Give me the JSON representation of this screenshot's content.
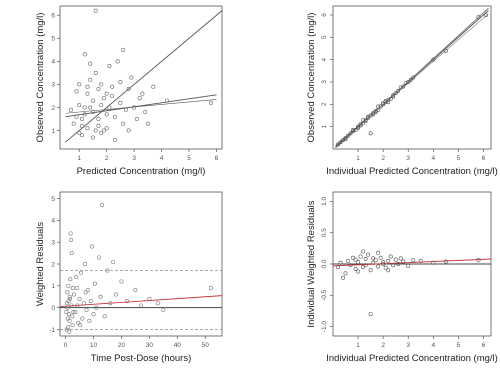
{
  "chart_data": [
    {
      "type": "scatter",
      "xlabel": "Predicted Concentration (mg/l)",
      "ylabel": "Observed Concentration (mg/l)",
      "xlim": [
        0.3,
        6.2
      ],
      "ylim": [
        0.2,
        6.4
      ],
      "xticks": [
        "1",
        "2",
        "3",
        "4",
        "5",
        "6"
      ],
      "yticks": [
        "1",
        "2",
        "3",
        "4",
        "5",
        "6"
      ],
      "colors": {
        "points": "#666666",
        "identity": "#555555",
        "fit": "#555555"
      },
      "lines": [
        {
          "kind": "identity",
          "x": [
            0.5,
            6.2
          ],
          "y": [
            0.5,
            6.2
          ]
        },
        {
          "kind": "fit",
          "x": [
            0.5,
            6.0
          ],
          "y": [
            1.6,
            2.55
          ]
        },
        {
          "kind": "fit-band",
          "x": [
            0.5,
            6.0
          ],
          "y": [
            1.75,
            2.35
          ]
        }
      ],
      "points": [
        [
          1.0,
          2.1
        ],
        [
          1.1,
          1.5
        ],
        [
          1.2,
          2.0
        ],
        [
          0.8,
          1.3
        ],
        [
          1.3,
          2.6
        ],
        [
          1.5,
          1.8
        ],
        [
          1.7,
          1.2
        ],
        [
          1.9,
          2.4
        ],
        [
          2.0,
          1.7
        ],
        [
          2.2,
          2.9
        ],
        [
          1.4,
          3.2
        ],
        [
          1.6,
          3.5
        ],
        [
          1.8,
          0.9
        ],
        [
          2.3,
          1.6
        ],
        [
          2.5,
          2.2
        ],
        [
          2.7,
          1.9
        ],
        [
          1.1,
          0.8
        ],
        [
          0.9,
          2.7
        ],
        [
          1.3,
          1.1
        ],
        [
          1.5,
          2.3
        ],
        [
          1.7,
          1.5
        ],
        [
          2.1,
          3.8
        ],
        [
          2.4,
          4.0
        ],
        [
          1.2,
          4.3
        ],
        [
          1.6,
          6.2
        ],
        [
          2.8,
          2.8
        ],
        [
          3.0,
          2.0
        ],
        [
          3.2,
          2.4
        ],
        [
          3.4,
          1.8
        ],
        [
          3.7,
          2.9
        ],
        [
          2.6,
          1.3
        ],
        [
          2.9,
          3.3
        ],
        [
          3.1,
          1.5
        ],
        [
          1.0,
          3.0
        ],
        [
          1.4,
          2.0
        ],
        [
          1.8,
          2.1
        ],
        [
          2.0,
          1.1
        ],
        [
          2.2,
          2.5
        ],
        [
          0.7,
          1.9
        ],
        [
          1.1,
          1.2
        ],
        [
          1.5,
          0.7
        ],
        [
          1.9,
          1.0
        ],
        [
          2.3,
          0.6
        ],
        [
          1.3,
          2.9
        ],
        [
          2.5,
          3.1
        ],
        [
          3.5,
          1.3
        ],
        [
          4.2,
          2.3
        ],
        [
          5.8,
          2.2
        ],
        [
          1.6,
          1.0
        ],
        [
          1.2,
          1.7
        ],
        [
          2.1,
          2.0
        ],
        [
          1.7,
          2.8
        ],
        [
          1.4,
          3.9
        ],
        [
          2.6,
          4.5
        ],
        [
          0.9,
          1.6
        ],
        [
          1.0,
          0.9
        ],
        [
          2.8,
          1.0
        ],
        [
          3.3,
          2.6
        ],
        [
          1.8,
          3.0
        ],
        [
          2.0,
          2.6
        ]
      ]
    },
    {
      "type": "scatter",
      "xlabel": "Individual Predicted Concentration (mg/l)",
      "ylabel": "Observed Concentration (mg/l)",
      "xlim": [
        0,
        6.3
      ],
      "ylim": [
        0,
        6.4
      ],
      "xticks": [
        "1",
        "2",
        "3",
        "4",
        "5",
        "6"
      ],
      "yticks": [
        "1",
        "2",
        "3",
        "4",
        "5",
        "6"
      ],
      "colors": {
        "points": "#555555",
        "identity": "#555555",
        "fit": "#777777"
      },
      "lines": [
        {
          "kind": "identity",
          "x": [
            0.1,
            6.2
          ],
          "y": [
            0.1,
            6.2
          ]
        },
        {
          "kind": "fit",
          "x": [
            0.1,
            6.2
          ],
          "y": [
            0.05,
            6.3
          ]
        },
        {
          "kind": "fit-band",
          "x": [
            0.1,
            6.2
          ],
          "y": [
            0.15,
            6.05
          ]
        }
      ],
      "points": [
        [
          0.2,
          0.2
        ],
        [
          0.3,
          0.3
        ],
        [
          0.4,
          0.4
        ],
        [
          0.5,
          0.45
        ],
        [
          0.6,
          0.6
        ],
        [
          0.7,
          0.7
        ],
        [
          0.8,
          0.8
        ],
        [
          0.9,
          0.85
        ],
        [
          1.0,
          1.0
        ],
        [
          1.1,
          1.1
        ],
        [
          1.2,
          1.15
        ],
        [
          1.3,
          1.3
        ],
        [
          1.4,
          1.4
        ],
        [
          1.5,
          1.5
        ],
        [
          1.6,
          1.55
        ],
        [
          1.7,
          1.7
        ],
        [
          1.8,
          1.75
        ],
        [
          1.9,
          1.9
        ],
        [
          2.0,
          2.0
        ],
        [
          2.1,
          2.1
        ],
        [
          2.2,
          2.2
        ],
        [
          2.3,
          2.25
        ],
        [
          2.4,
          2.4
        ],
        [
          2.5,
          2.5
        ],
        [
          2.6,
          2.6
        ],
        [
          2.8,
          2.8
        ],
        [
          3.0,
          3.0
        ],
        [
          3.2,
          3.2
        ],
        [
          1.2,
          1.3
        ],
        [
          1.4,
          1.45
        ],
        [
          1.6,
          1.6
        ],
        [
          1.8,
          1.9
        ],
        [
          2.0,
          2.05
        ],
        [
          2.2,
          2.1
        ],
        [
          1.5,
          0.7
        ],
        [
          1.0,
          0.95
        ],
        [
          0.8,
          0.85
        ],
        [
          1.3,
          1.25
        ],
        [
          1.7,
          1.65
        ],
        [
          2.1,
          2.15
        ],
        [
          2.4,
          2.35
        ],
        [
          2.7,
          2.75
        ],
        [
          2.9,
          2.95
        ],
        [
          3.1,
          3.1
        ],
        [
          4.0,
          4.0
        ],
        [
          4.5,
          4.4
        ],
        [
          5.8,
          5.9
        ],
        [
          6.1,
          6.0
        ],
        [
          1.1,
          1.05
        ],
        [
          0.5,
          0.5
        ]
      ]
    },
    {
      "type": "scatter",
      "xlabel": "Time Post-Dose (hours)",
      "ylabel": "Weighted Residuals",
      "xlim": [
        -2,
        56
      ],
      "ylim": [
        -1.3,
        5.3
      ],
      "xticks": [
        "0",
        "10",
        "20",
        "30",
        "40",
        "50"
      ],
      "yticks": [
        "-1",
        "0",
        "1",
        "2",
        "3",
        "4",
        "5"
      ],
      "colors": {
        "points": "#777777",
        "reference": "#444444",
        "fit": "#cc3333",
        "bounds": "#777777"
      },
      "lines": [
        {
          "kind": "reference",
          "x": [
            -2,
            56
          ],
          "y": [
            0,
            0
          ]
        },
        {
          "kind": "fit",
          "x": [
            -2,
            56
          ],
          "y": [
            0.05,
            0.55
          ]
        },
        {
          "kind": "upper-bound",
          "x": [
            -2,
            56
          ],
          "y": [
            1.7,
            1.7
          ]
        },
        {
          "kind": "lower-bound",
          "x": [
            -2,
            56
          ],
          "y": [
            -1.0,
            -1.0
          ]
        }
      ],
      "points": [
        [
          0.5,
          0.2
        ],
        [
          0.8,
          -0.5
        ],
        [
          1.0,
          1.0
        ],
        [
          1.2,
          -0.3
        ],
        [
          1.5,
          0.5
        ],
        [
          1.8,
          3.4
        ],
        [
          2.0,
          3.1
        ],
        [
          2.2,
          2.5
        ],
        [
          2.5,
          -0.8
        ],
        [
          0.3,
          -0.2
        ],
        [
          0.6,
          0.7
        ],
        [
          0.9,
          -0.9
        ],
        [
          1.1,
          0.3
        ],
        [
          1.4,
          -0.6
        ],
        [
          1.7,
          1.3
        ],
        [
          2.1,
          0.1
        ],
        [
          2.4,
          -0.4
        ],
        [
          3.0,
          0.6
        ],
        [
          3.5,
          -0.2
        ],
        [
          4.0,
          0.9
        ],
        [
          4.5,
          -0.7
        ],
        [
          5.0,
          0.4
        ],
        [
          5.5,
          1.6
        ],
        [
          6.0,
          -0.5
        ],
        [
          6.5,
          0.2
        ],
        [
          7.0,
          2.0
        ],
        [
          7.5,
          -0.1
        ],
        [
          8.0,
          0.8
        ],
        [
          8.5,
          -0.6
        ],
        [
          9.0,
          0.3
        ],
        [
          9.5,
          2.8
        ],
        [
          10.0,
          -0.3
        ],
        [
          10.5,
          1.1
        ],
        [
          11.0,
          0.0
        ],
        [
          12.0,
          2.3
        ],
        [
          12.5,
          0.5
        ],
        [
          13.0,
          4.7
        ],
        [
          14.0,
          -0.4
        ],
        [
          15.0,
          1.7
        ],
        [
          16.0,
          0.2
        ],
        [
          17.0,
          2.1
        ],
        [
          18.0,
          0.6
        ],
        [
          20.0,
          1.2
        ],
        [
          22.0,
          0.3
        ],
        [
          25.0,
          0.8
        ],
        [
          27.0,
          0.1
        ],
        [
          30.0,
          0.4
        ],
        [
          33.0,
          0.2
        ],
        [
          35.0,
          -0.1
        ],
        [
          52.0,
          0.9
        ],
        [
          0.4,
          -1.0
        ],
        [
          1.3,
          -1.1
        ],
        [
          2.8,
          -0.2
        ],
        [
          3.8,
          1.4
        ],
        [
          5.2,
          -0.8
        ],
        [
          7.2,
          0.7
        ],
        [
          0.7,
          0.0
        ],
        [
          1.6,
          0.4
        ],
        [
          2.6,
          0.9
        ],
        [
          4.2,
          0.1
        ]
      ]
    },
    {
      "type": "scatter",
      "xlabel": "Individual Predicted Concentration (mg/l)",
      "ylabel": "Individual Weighted Residuals",
      "xlim": [
        0,
        6.3
      ],
      "ylim": [
        -1.15,
        1.15
      ],
      "xticks": [
        "1",
        "2",
        "3",
        "4",
        "5",
        "6"
      ],
      "yticks": [
        "-1.0",
        "-0.5",
        "0.0",
        "0.5",
        "1.0"
      ],
      "colors": {
        "points": "#555555",
        "reference": "#444444",
        "fit": "#cc3333"
      },
      "lines": [
        {
          "kind": "reference",
          "x": [
            0,
            6.3
          ],
          "y": [
            0,
            0
          ]
        },
        {
          "kind": "fit",
          "x": [
            0,
            6.3
          ],
          "y": [
            -0.03,
            0.08
          ]
        }
      ],
      "points": [
        [
          0.2,
          -0.05
        ],
        [
          0.3,
          0.02
        ],
        [
          0.5,
          -0.15
        ],
        [
          0.6,
          0.05
        ],
        [
          0.7,
          -0.02
        ],
        [
          0.8,
          0.1
        ],
        [
          0.9,
          -0.08
        ],
        [
          1.0,
          0.03
        ],
        [
          1.1,
          0.12
        ],
        [
          1.2,
          -0.05
        ],
        [
          1.3,
          0.08
        ],
        [
          1.4,
          0.15
        ],
        [
          1.5,
          -0.1
        ],
        [
          1.6,
          0.02
        ],
        [
          1.7,
          0.06
        ],
        [
          1.8,
          -0.04
        ],
        [
          1.9,
          0.1
        ],
        [
          2.0,
          0.03
        ],
        [
          2.1,
          -0.06
        ],
        [
          2.2,
          0.05
        ],
        [
          2.3,
          0.12
        ],
        [
          2.4,
          -0.02
        ],
        [
          2.5,
          0.07
        ],
        [
          2.6,
          0.0
        ],
        [
          2.8,
          0.04
        ],
        [
          3.0,
          -0.03
        ],
        [
          3.2,
          0.06
        ],
        [
          1.5,
          -0.8
        ],
        [
          0.4,
          -0.22
        ],
        [
          1.0,
          -0.12
        ],
        [
          1.2,
          0.2
        ],
        [
          1.8,
          0.18
        ],
        [
          2.2,
          -0.1
        ],
        [
          2.7,
          0.09
        ],
        [
          3.5,
          0.05
        ],
        [
          4.0,
          0.02
        ],
        [
          4.5,
          0.04
        ],
        [
          5.8,
          0.06
        ],
        [
          1.6,
          0.09
        ],
        [
          0.9,
          0.07
        ],
        [
          1.3,
          -0.02
        ],
        [
          2.0,
          0.0
        ]
      ]
    }
  ]
}
